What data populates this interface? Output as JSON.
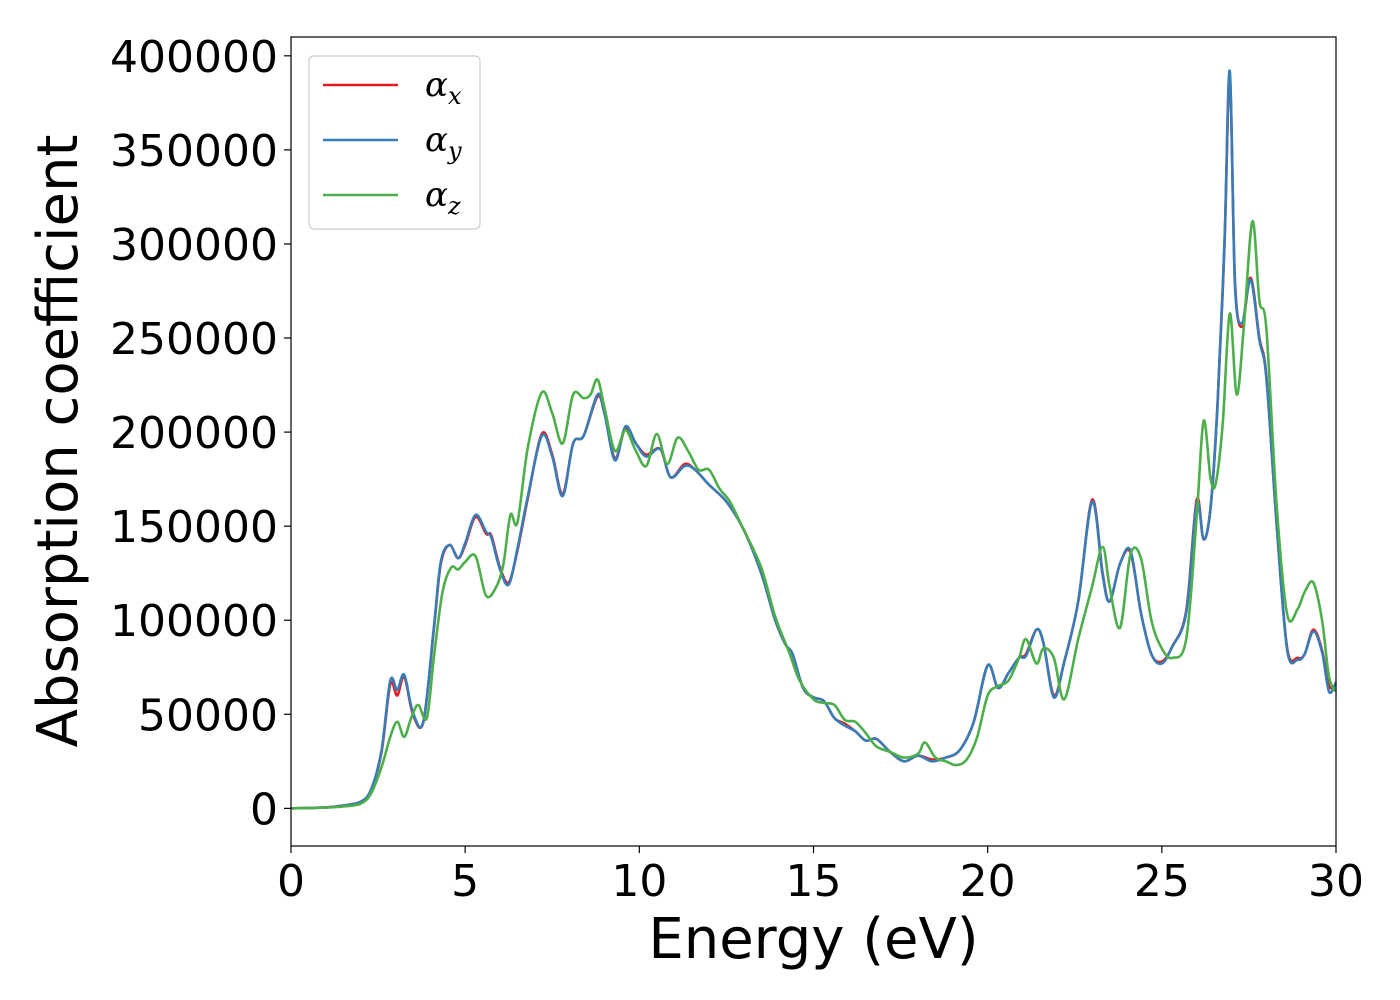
{
  "chart_data": {
    "type": "line",
    "xlabel": "Energy (eV)",
    "ylabel": "Absorption coefficient",
    "xlim": [
      0,
      30
    ],
    "ylim": [
      -20000,
      410000
    ],
    "xticks": [
      "0",
      "5",
      "10",
      "15",
      "20",
      "25",
      "30"
    ],
    "yticks": [
      "0",
      "50000",
      "100000",
      "150000",
      "200000",
      "250000",
      "300000",
      "350000",
      "400000"
    ],
    "grid": false,
    "legend_position": "top-left",
    "series": [
      {
        "name": "αx",
        "legend_symbol": "α",
        "legend_subscript": "x",
        "color": "#e41a1c",
        "x": [
          0,
          1,
          1.5,
          2,
          2.3,
          2.6,
          2.85,
          3.05,
          3.25,
          3.5,
          3.8,
          4.1,
          4.3,
          4.55,
          4.8,
          5.0,
          5.3,
          5.6,
          5.75,
          6.0,
          6.25,
          6.5,
          6.8,
          7.2,
          7.5,
          7.8,
          8.1,
          8.4,
          8.8,
          9.0,
          9.3,
          9.6,
          9.9,
          10.2,
          10.6,
          10.9,
          11.3,
          11.6,
          12.0,
          12.5,
          13.0,
          13.5,
          13.9,
          14.2,
          14.4,
          14.7,
          15.0,
          15.3,
          15.6,
          15.9,
          16.2,
          16.5,
          16.8,
          17.2,
          17.6,
          18.0,
          18.4,
          18.8,
          19.2,
          19.6,
          20.0,
          20.3,
          20.6,
          20.9,
          21.1,
          21.4,
          21.6,
          21.9,
          22.2,
          22.6,
          23.0,
          23.3,
          23.5,
          23.8,
          24.1,
          24.4,
          24.7,
          25.0,
          25.3,
          25.7,
          26.0,
          26.2,
          26.4,
          26.6,
          26.8,
          26.95,
          27.1,
          27.3,
          27.55,
          27.8,
          28.0,
          28.3,
          28.6,
          28.9,
          29.1,
          29.35,
          29.6,
          29.8,
          30.0
        ],
        "values": [
          0,
          500,
          1500,
          3500,
          10000,
          30000,
          66000,
          60000,
          70000,
          50000,
          46000,
          95000,
          130000,
          140000,
          133000,
          140000,
          155000,
          146000,
          145000,
          128000,
          120000,
          137000,
          165000,
          199000,
          188000,
          167000,
          194000,
          198000,
          219000,
          210000,
          186000,
          202000,
          194000,
          188000,
          191000,
          176000,
          183000,
          180000,
          172000,
          163000,
          148000,
          125000,
          100000,
          87000,
          82000,
          64000,
          59000,
          57000,
          48000,
          45000,
          41000,
          36000,
          37000,
          30000,
          25000,
          28000,
          26000,
          27000,
          31000,
          46000,
          76000,
          64000,
          72000,
          80000,
          82000,
          95000,
          88000,
          60000,
          78000,
          110000,
          164000,
          125000,
          110000,
          130000,
          136000,
          104000,
          82000,
          78000,
          86000,
          105000,
          164000,
          143000,
          160000,
          215000,
          300000,
          390000,
          280000,
          256000,
          282000,
          250000,
          230000,
          150000,
          85000,
          80000,
          82000,
          95000,
          84000,
          65000,
          66000
        ]
      },
      {
        "name": "αy",
        "legend_symbol": "α",
        "legend_subscript": "y",
        "color": "#377eb8",
        "x": [
          0,
          1,
          1.5,
          2,
          2.3,
          2.6,
          2.85,
          3.05,
          3.25,
          3.5,
          3.8,
          4.1,
          4.3,
          4.55,
          4.8,
          5.0,
          5.3,
          5.6,
          5.75,
          6.0,
          6.25,
          6.5,
          6.8,
          7.2,
          7.5,
          7.8,
          8.1,
          8.4,
          8.8,
          9.0,
          9.3,
          9.6,
          9.9,
          10.2,
          10.6,
          10.9,
          11.3,
          11.6,
          12.0,
          12.5,
          13.0,
          13.5,
          13.9,
          14.2,
          14.4,
          14.7,
          15.0,
          15.3,
          15.6,
          15.9,
          16.2,
          16.5,
          16.8,
          17.2,
          17.6,
          18.0,
          18.4,
          18.8,
          19.2,
          19.6,
          20.0,
          20.3,
          20.6,
          20.9,
          21.1,
          21.4,
          21.6,
          21.9,
          22.2,
          22.6,
          23.0,
          23.3,
          23.5,
          23.8,
          24.1,
          24.4,
          24.7,
          25.0,
          25.3,
          25.7,
          26.0,
          26.2,
          26.4,
          26.6,
          26.8,
          26.95,
          27.1,
          27.3,
          27.55,
          27.8,
          28.0,
          28.3,
          28.6,
          28.9,
          29.1,
          29.35,
          29.6,
          29.8,
          30.0
        ],
        "values": [
          0,
          500,
          1500,
          3500,
          10000,
          31000,
          68000,
          63000,
          71000,
          51000,
          46000,
          96000,
          131000,
          140000,
          133000,
          141000,
          156000,
          147000,
          144000,
          127000,
          119000,
          138000,
          166000,
          198000,
          187000,
          166000,
          194000,
          198000,
          220000,
          210000,
          185000,
          203000,
          194000,
          187000,
          191000,
          176000,
          182000,
          180000,
          172000,
          163000,
          148000,
          125000,
          100000,
          87000,
          82000,
          64000,
          59000,
          57000,
          48000,
          44000,
          41000,
          36000,
          37000,
          30000,
          25000,
          28000,
          25000,
          27000,
          31000,
          46000,
          76000,
          64000,
          72000,
          80000,
          81000,
          95000,
          88000,
          59000,
          78000,
          110000,
          163000,
          124000,
          110000,
          130000,
          137000,
          104000,
          82000,
          77000,
          86000,
          104000,
          162000,
          143000,
          160000,
          215000,
          302000,
          392000,
          278000,
          258000,
          281000,
          249000,
          229000,
          150000,
          84000,
          79000,
          82000,
          94000,
          83000,
          62000,
          67000
        ]
      },
      {
        "name": "αz",
        "legend_symbol": "α",
        "legend_subscript": "z",
        "color": "#4daf4a",
        "x": [
          0,
          1,
          1.5,
          2,
          2.3,
          2.6,
          2.85,
          3.05,
          3.25,
          3.45,
          3.65,
          3.9,
          4.1,
          4.35,
          4.6,
          4.8,
          5.0,
          5.3,
          5.6,
          5.9,
          6.1,
          6.3,
          6.5,
          6.8,
          7.2,
          7.5,
          7.8,
          8.1,
          8.4,
          8.6,
          8.8,
          9.0,
          9.3,
          9.6,
          9.9,
          10.2,
          10.5,
          10.8,
          11.1,
          11.4,
          11.7,
          12.0,
          12.3,
          12.6,
          13.0,
          13.5,
          13.9,
          14.3,
          14.6,
          15.0,
          15.3,
          15.6,
          15.9,
          16.2,
          16.5,
          16.8,
          17.2,
          17.6,
          18.0,
          18.2,
          18.5,
          18.8,
          19.1,
          19.4,
          19.7,
          20.0,
          20.3,
          20.6,
          20.9,
          21.1,
          21.4,
          21.6,
          21.9,
          22.2,
          22.6,
          23.0,
          23.3,
          23.5,
          23.8,
          24.1,
          24.4,
          24.7,
          25.0,
          25.3,
          25.7,
          26.0,
          26.2,
          26.4,
          26.55,
          26.75,
          26.95,
          27.15,
          27.35,
          27.6,
          27.8,
          28.0,
          28.3,
          28.6,
          28.9,
          29.1,
          29.35,
          29.6,
          29.8,
          30.0
        ],
        "values": [
          0,
          400,
          1000,
          2500,
          8000,
          22000,
          38000,
          46000,
          38000,
          48000,
          55000,
          48000,
          80000,
          115000,
          128000,
          127000,
          131000,
          134000,
          113000,
          118000,
          130000,
          156000,
          152000,
          192000,
          221000,
          210000,
          194000,
          220000,
          218000,
          220000,
          228000,
          213000,
          190000,
          201000,
          190000,
          182000,
          199000,
          183000,
          197000,
          190000,
          180000,
          180000,
          170000,
          163000,
          148000,
          128000,
          102000,
          83000,
          68000,
          58000,
          56000,
          55000,
          47000,
          46000,
          40000,
          33000,
          30000,
          27000,
          29000,
          35000,
          27000,
          25000,
          23000,
          26000,
          38000,
          60000,
          65000,
          68000,
          80000,
          90000,
          77000,
          85000,
          80000,
          58000,
          90000,
          118000,
          139000,
          118000,
          96000,
          135000,
          133000,
          100000,
          85000,
          80000,
          90000,
          155000,
          206000,
          175000,
          173000,
          205000,
          263000,
          220000,
          255000,
          312000,
          270000,
          255000,
          160000,
          103000,
          106000,
          115000,
          120000,
          100000,
          70000,
          62000
        ]
      }
    ]
  }
}
